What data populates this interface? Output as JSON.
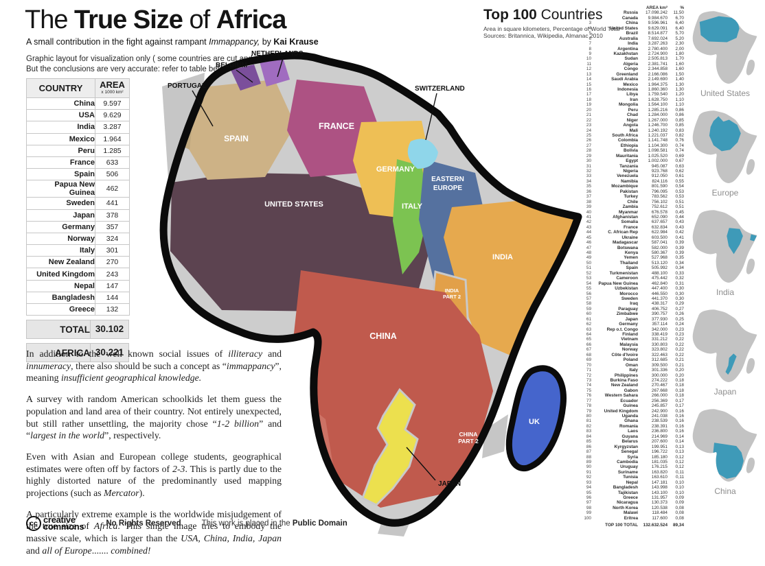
{
  "header": {
    "title_segments": [
      {
        "t": "The "
      },
      {
        "t": "True Size",
        "b": 1
      },
      {
        "t": " of "
      },
      {
        "t": "Africa",
        "b": 1
      }
    ],
    "subtitle_segments": [
      {
        "t": "A small contribution in the fight against rampant "
      },
      {
        "t": "Immappancy,",
        "i": 1
      },
      {
        "t": " by "
      },
      {
        "t": "Kai Krause",
        "b": 1
      }
    ],
    "note_line1": "Graphic layout for visualization only ( some countries are cut and rotated )",
    "note_line2": "But the conclusions are very accurate: refer to table below for exact data"
  },
  "area_table": {
    "col_country": "COUNTRY",
    "col_area": "AREA",
    "col_area_unit": "x 1000 km²",
    "rows": [
      [
        "China",
        "9.597"
      ],
      [
        "USA",
        "9.629"
      ],
      [
        "India",
        "3.287"
      ],
      [
        "Mexico",
        "1.964"
      ],
      [
        "Peru",
        "1.285"
      ],
      [
        "France",
        "633"
      ],
      [
        "Spain",
        "506"
      ],
      [
        "Papua New Guinea",
        "462"
      ],
      [
        "Sweden",
        "441"
      ],
      [
        "Japan",
        "378"
      ],
      [
        "Germany",
        "357"
      ],
      [
        "Norway",
        "324"
      ],
      [
        "Italy",
        "301"
      ],
      [
        "New Zealand",
        "270"
      ],
      [
        "United Kingdom",
        "243"
      ],
      [
        "Nepal",
        "147"
      ],
      [
        "Bangladesh",
        "144"
      ],
      [
        "Greece",
        "132"
      ]
    ],
    "total_label": "TOTAL",
    "total_value": "30.102",
    "africa_label": "AFRICA",
    "africa_value": "30.221"
  },
  "paragraphs": [
    [
      {
        "t": "In addition to the well known social issues of "
      },
      {
        "t": "illiteracy",
        "i": 1
      },
      {
        "t": " and "
      },
      {
        "t": "innumeracy",
        "i": 1
      },
      {
        "t": ", there also should be such a concept as “"
      },
      {
        "t": "immappancy",
        "i": 1
      },
      {
        "t": "”, meaning "
      },
      {
        "t": "insufficient geographical knowledge.",
        "i": 1
      }
    ],
    [
      {
        "t": "A survey with random American schoolkids let them guess the population and land area of their country. Not entirely unexpected, but still rather unsettling, the majority chose “"
      },
      {
        "t": "1-2 billion",
        "i": 1
      },
      {
        "t": "” and “"
      },
      {
        "t": "largest in the world",
        "i": 1
      },
      {
        "t": "”, respectively."
      }
    ],
    [
      {
        "t": "Even with Asian and European college students, geographical estimates were often off by factors of "
      },
      {
        "t": "2-3",
        "i": 1
      },
      {
        "t": ". This is partly due to the highly distorted nature of the predominantly used mapping projections (such as "
      },
      {
        "t": "Mercator",
        "i": 1
      },
      {
        "t": ")."
      }
    ],
    [
      {
        "t": "A particularly extreme example is the worldwide misjudgement of the true size of "
      },
      {
        "t": "Africa",
        "i": 1
      },
      {
        "t": ". This single image tries to embody the massive scale, which is larger than the "
      },
      {
        "t": "USA,  China,  India,  Japan",
        "i": 1
      },
      {
        "t": " and "
      },
      {
        "t": "all of Europe",
        "i": 1
      },
      {
        "t": "....... "
      },
      {
        "t": "combined!",
        "i": 1
      }
    ]
  ],
  "footer": {
    "cc_symbol": "cc",
    "cc_word1": "creative",
    "cc_word2": "commons",
    "rights": "No Rights Reserved",
    "statement_prefix": "This work is placed in the ",
    "statement_bold": "Public Domain"
  },
  "top100": {
    "title_bold": "Top 100",
    "title_rest": " Countries",
    "sub1": "Area in square kilometers, Percentage of World Total",
    "sub2": "Sources:  Britannica, Wikipedia, Almanac 2010",
    "col_area": "AREA km²",
    "col_pct": "%",
    "rows": [
      [
        1,
        "Russia",
        "17.098.242",
        "11,50"
      ],
      [
        2,
        "Canada",
        "9.984.670",
        "6,70"
      ],
      [
        3,
        "China",
        "9.596.961",
        "6,40"
      ],
      [
        4,
        "United States",
        "9.629.091",
        "6,40"
      ],
      [
        5,
        "Brazil",
        "8.514.877",
        "5,70"
      ],
      [
        6,
        "Australia",
        "7.692.024",
        "5,20"
      ],
      [
        7,
        "India",
        "3.287.263",
        "2,30"
      ],
      [
        8,
        "Argentina",
        "2.780.400",
        "2,00"
      ],
      [
        9,
        "Kazakhstan",
        "2.724.900",
        "1,80"
      ],
      [
        10,
        "Sudan",
        "2.505.813",
        "1,70"
      ],
      [
        11,
        "Algeria",
        "2.381.741",
        "1,60"
      ],
      [
        12,
        "Congo",
        "2.344.858",
        "1,60"
      ],
      [
        13,
        "Greenland",
        "2.166.086",
        "1,50"
      ],
      [
        14,
        "Saudi Arabia",
        "2.149.690",
        "1,40"
      ],
      [
        15,
        "Mexico",
        "1.964.375",
        "1,30"
      ],
      [
        16,
        "Indonesia",
        "1.860.360",
        "1,30"
      ],
      [
        17,
        "Libya",
        "1.759.540",
        "1,20"
      ],
      [
        18,
        "Iran",
        "1.628.750",
        "1,10"
      ],
      [
        19,
        "Mongolia",
        "1.564.100",
        "1,10"
      ],
      [
        20,
        "Peru",
        "1.285.216",
        "0,86"
      ],
      [
        21,
        "Chad",
        "1.284.000",
        "0,86"
      ],
      [
        22,
        "Niger",
        "1.267.000",
        "0,85"
      ],
      [
        23,
        "Angola",
        "1.246.700",
        "0,85"
      ],
      [
        24,
        "Mali",
        "1.240.192",
        "0,83"
      ],
      [
        25,
        "South Africa",
        "1.221.037",
        "0,82"
      ],
      [
        26,
        "Colombia",
        "1.141.748",
        "0,76"
      ],
      [
        27,
        "Ethiopia",
        "1.104.300",
        "0,74"
      ],
      [
        28,
        "Bolivia",
        "1.098.581",
        "0,74"
      ],
      [
        29,
        "Mauritania",
        "1.025.520",
        "0,69"
      ],
      [
        30,
        "Egypt",
        "1.002.000",
        "0,67"
      ],
      [
        31,
        "Tanzania",
        "945.087",
        "0,63"
      ],
      [
        32,
        "Nigeria",
        "923.768",
        "0,62"
      ],
      [
        33,
        "Venezuela",
        "912.050",
        "0,61"
      ],
      [
        34,
        "Namibia",
        "824.116",
        "0,55"
      ],
      [
        35,
        "Mozambique",
        "801.590",
        "0,54"
      ],
      [
        36,
        "Pakistan",
        "796.095",
        "0,53"
      ],
      [
        37,
        "Turkey",
        "783.562",
        "0,53"
      ],
      [
        38,
        "Chile",
        "756.102",
        "0,51"
      ],
      [
        39,
        "Zambia",
        "752.612",
        "0,51"
      ],
      [
        40,
        "Myanmar",
        "676.578",
        "0,45"
      ],
      [
        41,
        "Afghanistan",
        "652.090",
        "0,44"
      ],
      [
        42,
        "Somalia",
        "637.657",
        "0,43"
      ],
      [
        43,
        "France",
        "632.834",
        "0,43"
      ],
      [
        44,
        "C. African Rep",
        "622.984",
        "0,42"
      ],
      [
        45,
        "Ukraine",
        "603.500",
        "0,41"
      ],
      [
        46,
        "Madagascar",
        "587.041",
        "0,39"
      ],
      [
        47,
        "Botswana",
        "582.000",
        "0,39"
      ],
      [
        48,
        "Kenya",
        "580.367",
        "0,39"
      ],
      [
        49,
        "Yemen",
        "527.968",
        "0,35"
      ],
      [
        50,
        "Thailand",
        "513.120",
        "0,34"
      ],
      [
        51,
        "Spain",
        "505.992",
        "0,34"
      ],
      [
        52,
        "Turkmenistan",
        "488.100",
        "0,33"
      ],
      [
        53,
        "Cameroon",
        "475.442",
        "0,32"
      ],
      [
        54,
        "Papua New Guinea",
        "462.840",
        "0,31"
      ],
      [
        55,
        "Uzbekistan",
        "447.400",
        "0,30"
      ],
      [
        56,
        "Morocco",
        "446.550",
        "0,30"
      ],
      [
        57,
        "Sweden",
        "441.370",
        "0,30"
      ],
      [
        58,
        "Iraq",
        "438.317",
        "0,29"
      ],
      [
        59,
        "Paraguay",
        "406.752",
        "0,27"
      ],
      [
        60,
        "Zimbabwe",
        "390.757",
        "0,26"
      ],
      [
        61,
        "Japan",
        "377.930",
        "0,25"
      ],
      [
        62,
        "Germany",
        "357.114",
        "0,24"
      ],
      [
        63,
        "Rep o.t. Congo",
        "342.000",
        "0,23"
      ],
      [
        64,
        "Finland",
        "338.419",
        "0,23"
      ],
      [
        65,
        "Vietnam",
        "331.212",
        "0,22"
      ],
      [
        66,
        "Malaysia",
        "330.803",
        "0,22"
      ],
      [
        67,
        "Norway",
        "323.802",
        "0,22"
      ],
      [
        68,
        "Côte d'Ivoire",
        "322.463",
        "0,22"
      ],
      [
        69,
        "Poland",
        "312.685",
        "0,21"
      ],
      [
        70,
        "Oman",
        "309.500",
        "0,21"
      ],
      [
        71,
        "Italy",
        "301.336",
        "0,20"
      ],
      [
        72,
        "Philippines",
        "300.000",
        "0,20"
      ],
      [
        73,
        "Burkina Faso",
        "274.222",
        "0,18"
      ],
      [
        74,
        "New Zealand",
        "270.467",
        "0,18"
      ],
      [
        75,
        "Gabon",
        "267.668",
        "0,18"
      ],
      [
        76,
        "Western Sahara",
        "266.000",
        "0,18"
      ],
      [
        77,
        "Ecuador",
        "256.369",
        "0,17"
      ],
      [
        78,
        "Guinea",
        "245.857",
        "0,17"
      ],
      [
        79,
        "United Kingdom",
        "242.900",
        "0,16"
      ],
      [
        80,
        "Uganda",
        "241.038",
        "0,16"
      ],
      [
        81,
        "Ghana",
        "238.539",
        "0,16"
      ],
      [
        82,
        "Romania",
        "238.391",
        "0,16"
      ],
      [
        83,
        "Laos",
        "236.800",
        "0,16"
      ],
      [
        84,
        "Guyana",
        "214.969",
        "0,14"
      ],
      [
        85,
        "Belarus",
        "207.600",
        "0,14"
      ],
      [
        86,
        "Kyrgyzstan",
        "199.951",
        "0,13"
      ],
      [
        87,
        "Senegal",
        "196.722",
        "0,13"
      ],
      [
        88,
        "Syria",
        "185.180",
        "0,12"
      ],
      [
        89,
        "Cambodia",
        "181.035",
        "0,12"
      ],
      [
        90,
        "Uruguay",
        "176.215",
        "0,12"
      ],
      [
        91,
        "Suriname",
        "163.820",
        "0,11"
      ],
      [
        92,
        "Tunisia",
        "163.610",
        "0,11"
      ],
      [
        93,
        "Nepal",
        "147.181",
        "0,10"
      ],
      [
        94,
        "Bangladesh",
        "143.998",
        "0,10"
      ],
      [
        95,
        "Tajikistan",
        "143.100",
        "0,10"
      ],
      [
        96,
        "Greece",
        "131.957",
        "0,09"
      ],
      [
        97,
        "Nicaragua",
        "130.373",
        "0,09"
      ],
      [
        98,
        "North Korea",
        "120.538",
        "0,08"
      ],
      [
        99,
        "Malawi",
        "118.484",
        "0,08"
      ],
      [
        100,
        "Eritrea",
        "117.600",
        "0,08"
      ]
    ],
    "total_label": "TOP 100 TOTAL",
    "total_area": "132.632.524",
    "total_pct": "89,34"
  },
  "map": {
    "colors": {
      "base": "#cdcdcd",
      "underlay": "#c6c6c6",
      "outline": "#0b0b0b",
      "united_states": "#5c4350",
      "spain": "#cdb286",
      "portugal": "#bfa87e",
      "belgium": "#7b4f9b",
      "netherlands": "#a06cc0",
      "france": "#ad5283",
      "germany": "#eebf55",
      "switzerland": "#8fd6ea",
      "italy": "#7cc351",
      "eastern_europe": "#55719f",
      "india": "#e6a94e",
      "india2": "#e2a049",
      "china": "#c05a4d",
      "china_light": "#cd7265",
      "japan": "#ece04e",
      "uk": "#4565cc"
    },
    "labels": {
      "spain": "SPAIN",
      "france": "FRANCE",
      "germany": "GERMANY",
      "italy": "ITALY",
      "eastern_europe_1": "EASTERN",
      "eastern_europe_2": "EUROPE",
      "united_states": "UNITED STATES",
      "india": "INDIA",
      "india2_1": "INDIA",
      "india2_2": "PART 2",
      "china": "CHINA",
      "china2_1": "CHINA",
      "china2_2": "PART 2",
      "uk": "UK"
    },
    "callouts": {
      "portugal": "PORTUGAL",
      "belgium": "BELGIUM",
      "netherlands": "NETHERLANDS",
      "switzerland": "SWITZERLAND",
      "japan": "JAPAN"
    }
  },
  "minimaps": {
    "highlight_color": "#3e9ab8",
    "silhouette_color": "#c3c3c3",
    "items": [
      {
        "label": "United States"
      },
      {
        "label": "Europe"
      },
      {
        "label": "India"
      },
      {
        "label": "Japan"
      },
      {
        "label": "China"
      }
    ]
  }
}
